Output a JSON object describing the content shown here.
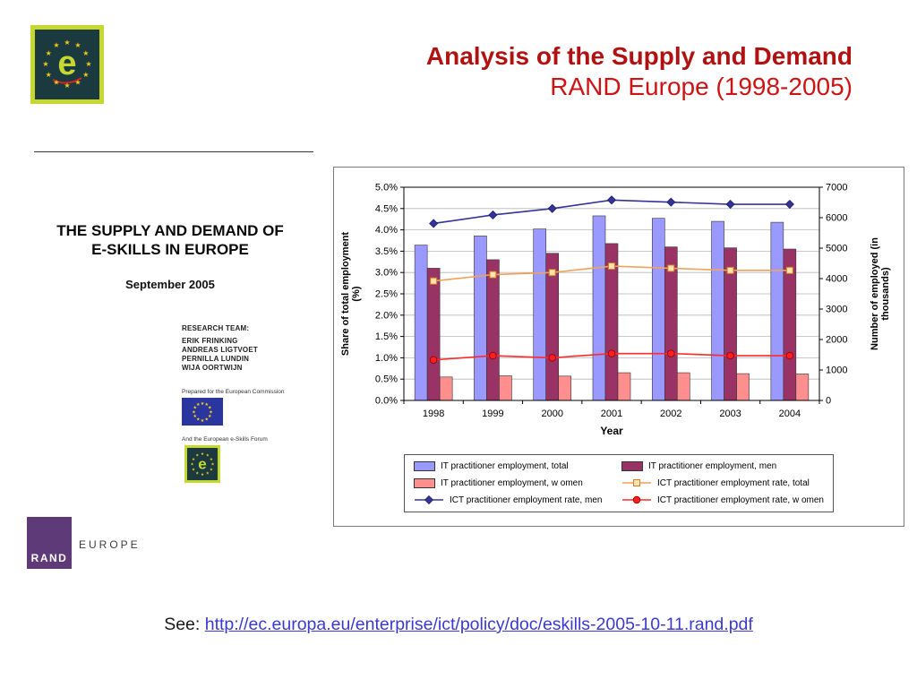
{
  "header": {
    "title_line1": "Analysis of the Supply and Demand",
    "title_line2": "RAND Europe (1998-2005)"
  },
  "logos": {
    "e_glyph": "e"
  },
  "cover": {
    "title_line1": "THE SUPPLY AND DEMAND OF",
    "title_line2": "E-SKILLS IN EUROPE",
    "date": "September 2005",
    "research_team_label": "RESEARCH TEAM:",
    "team": [
      "ERIK FRINKING",
      "ANDREAS LIGTVOET",
      "PERNILLA LUNDIN",
      "WIJA OORTWIJN"
    ],
    "prepared_for": "Prepared for the European Commission",
    "forum_note": "And the European e-Skills Forum",
    "rand_logo_text": "RAND",
    "rand_europe_label": "EUROPE"
  },
  "chart_data": {
    "type": "bar",
    "subtype": "combo-bar-line-dual-axis",
    "categories": [
      "1998",
      "1999",
      "2000",
      "2001",
      "2002",
      "2003",
      "2004"
    ],
    "xlabel": "Year",
    "grid": "horizontal",
    "legend_position": "bottom",
    "left_axis": {
      "label_lines": [
        "Share of total employment",
        "(%)"
      ],
      "min": 0,
      "max": 5,
      "ticks": [
        "0.0%",
        "0.5%",
        "1.0%",
        "1.5%",
        "2.0%",
        "2.5%",
        "3.0%",
        "3.5%",
        "4.0%",
        "4.5%",
        "5.0%"
      ]
    },
    "right_axis": {
      "label_lines": [
        "Number of employed (in",
        "thousands)"
      ],
      "min": 0,
      "max": 7000,
      "ticks": [
        "0",
        "1000",
        "2000",
        "3000",
        "4000",
        "5000",
        "6000",
        "7000"
      ]
    },
    "bar_series": [
      {
        "name": "IT practitioner employment, total",
        "axis": "right",
        "color": "#9999ff",
        "values": [
          5100,
          5400,
          5630,
          6060,
          5980,
          5880,
          5850
        ]
      },
      {
        "name": "IT practitioner employment, men",
        "axis": "right",
        "color": "#993366",
        "values": [
          4340,
          4620,
          4830,
          5150,
          5040,
          5010,
          4970
        ]
      },
      {
        "name": "IT practitioner employment, w omen",
        "axis": "right",
        "color": "#ff8e8e",
        "values": [
          770,
          810,
          800,
          910,
          910,
          880,
          870
        ]
      }
    ],
    "line_series": [
      {
        "name": "ICT practitioner employment rate, total",
        "axis": "left",
        "color": "#f0a25a",
        "marker": "square",
        "marker_fill": "#ffe2ae",
        "marker_stroke": "#cf7d1e",
        "values": [
          2.8,
          2.95,
          3.0,
          3.15,
          3.1,
          3.05,
          3.05
        ]
      },
      {
        "name": "ICT practitioner employment rate, men",
        "axis": "left",
        "color": "#333399",
        "marker": "diamond",
        "marker_fill": "#333399",
        "marker_stroke": "#1f1f66",
        "values": [
          4.15,
          4.35,
          4.5,
          4.7,
          4.65,
          4.6,
          4.6
        ]
      },
      {
        "name": "ICT practitioner employment rate, w omen",
        "axis": "left",
        "color": "#ff2a2a",
        "marker": "circle",
        "marker_fill": "#ff1f1f",
        "marker_stroke": "#8f0000",
        "values": [
          0.95,
          1.05,
          1.0,
          1.1,
          1.1,
          1.05,
          1.05
        ]
      }
    ]
  },
  "footer": {
    "see_label": "See:",
    "link_text": "http://ec.europa.eu/enterprise/ict/policy/doc/eskills-2005-10-11.rand.pdf"
  }
}
